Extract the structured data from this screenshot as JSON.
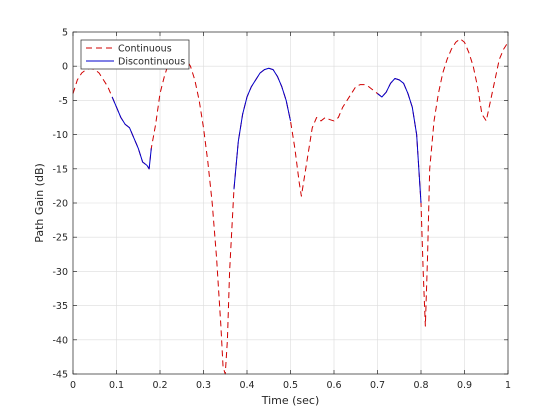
{
  "chart_data": {
    "type": "line",
    "title": "",
    "xlabel": "Time (sec)",
    "ylabel": "Path Gain (dB)",
    "xlim": [
      0,
      1
    ],
    "ylim": [
      -45,
      5
    ],
    "xticks": [
      "0",
      "0.1",
      "0.2",
      "0.3",
      "0.4",
      "0.5",
      "0.6",
      "0.7",
      "0.8",
      "0.9",
      "1"
    ],
    "yticks": [
      "5",
      "0",
      "-5",
      "-10",
      "-15",
      "-20",
      "-25",
      "-30",
      "-35",
      "-40",
      "-45"
    ],
    "grid": true,
    "legend_position": "top-left",
    "series": [
      {
        "name": "Continuous",
        "color": "#d00000",
        "style": "dashed",
        "x": [
          0,
          0.01,
          0.02,
          0.03,
          0.04,
          0.05,
          0.06,
          0.07,
          0.08,
          0.09,
          0.1,
          0.11,
          0.12,
          0.13,
          0.14,
          0.15,
          0.16,
          0.17,
          0.175,
          0.18,
          0.19,
          0.2,
          0.21,
          0.22,
          0.23,
          0.24,
          0.25,
          0.26,
          0.27,
          0.28,
          0.29,
          0.3,
          0.31,
          0.32,
          0.33,
          0.34,
          0.345,
          0.35,
          0.355,
          0.36,
          0.37,
          0.38,
          0.39,
          0.4,
          0.41,
          0.42,
          0.43,
          0.44,
          0.45,
          0.46,
          0.47,
          0.48,
          0.49,
          0.5,
          0.51,
          0.52,
          0.525,
          0.53,
          0.54,
          0.55,
          0.56,
          0.57,
          0.58,
          0.59,
          0.6,
          0.61,
          0.62,
          0.63,
          0.64,
          0.65,
          0.66,
          0.67,
          0.68,
          0.69,
          0.7,
          0.71,
          0.72,
          0.73,
          0.74,
          0.75,
          0.76,
          0.77,
          0.78,
          0.79,
          0.8,
          0.805,
          0.81,
          0.815,
          0.82,
          0.83,
          0.84,
          0.85,
          0.86,
          0.87,
          0.88,
          0.89,
          0.9,
          0.91,
          0.92,
          0.93,
          0.94,
          0.95,
          0.96,
          0.97,
          0.98,
          0.99,
          1.0
        ],
        "y": [
          -4,
          -2,
          -1,
          -0.5,
          -0.3,
          -0.5,
          -1,
          -2,
          -3,
          -4.5,
          -6,
          -7.5,
          -8.5,
          -9,
          -10.5,
          -12,
          -14,
          -14.5,
          -15,
          -12,
          -8.5,
          -4,
          -1.5,
          0.5,
          1.5,
          2,
          1.8,
          1,
          0,
          -2,
          -5,
          -9,
          -14,
          -20,
          -28,
          -38,
          -44,
          -45,
          -40,
          -30,
          -18,
          -11,
          -7,
          -4.5,
          -3,
          -2,
          -1,
          -0.5,
          -0.3,
          -0.5,
          -1.5,
          -3,
          -5,
          -8,
          -12,
          -17,
          -19,
          -17,
          -13,
          -9,
          -7.5,
          -8,
          -7.5,
          -7.8,
          -8,
          -7.5,
          -6,
          -5,
          -4,
          -3,
          -2.7,
          -2.7,
          -3,
          -3.5,
          -4,
          -4.5,
          -3.8,
          -2.5,
          -1.8,
          -2,
          -2.5,
          -4,
          -6,
          -10,
          -20,
          -30,
          -38,
          -28,
          -15,
          -8,
          -4,
          -1,
          1,
          2.5,
          3.5,
          4,
          3.5,
          2,
          0,
          -3,
          -7,
          -8,
          -5,
          -2,
          1,
          2.5,
          3.5
        ]
      },
      {
        "name": "Discontinuous",
        "color": "#0000cc",
        "style": "solid",
        "segments": [
          {
            "x": [
              0.09,
              0.1,
              0.11,
              0.12,
              0.13,
              0.14,
              0.15,
              0.16,
              0.17,
              0.175,
              0.18
            ],
            "y": [
              -4.5,
              -6,
              -7.5,
              -8.5,
              -9,
              -10.5,
              -12,
              -14,
              -14.5,
              -15,
              -12
            ]
          },
          {
            "x": [
              0.37,
              0.38,
              0.39,
              0.4,
              0.41,
              0.42,
              0.43,
              0.44,
              0.45,
              0.46,
              0.47,
              0.48,
              0.49,
              0.5
            ],
            "y": [
              -18,
              -11,
              -7,
              -4.5,
              -3,
              -2,
              -1,
              -0.5,
              -0.3,
              -0.5,
              -1.5,
              -3,
              -5,
              -8
            ]
          },
          {
            "x": [
              0.7,
              0.71,
              0.72,
              0.73,
              0.74,
              0.75,
              0.76,
              0.77,
              0.78,
              0.79,
              0.8
            ],
            "y": [
              -4,
              -4.5,
              -3.8,
              -2.5,
              -1.8,
              -2,
              -2.5,
              -4,
              -6,
              -10,
              -20
            ]
          }
        ]
      }
    ]
  }
}
